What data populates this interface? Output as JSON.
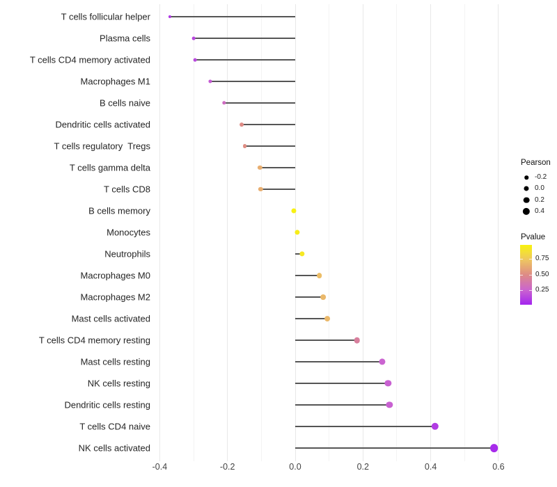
{
  "chart_data": {
    "type": "scatter",
    "subtype": "lollipop",
    "title": "",
    "xlabel": "",
    "ylabel": "",
    "xlim": [
      -0.45,
      0.66
    ],
    "grid": "vertical-only",
    "x_ticks": [
      {
        "value": -0.4,
        "label": "-0.4"
      },
      {
        "value": -0.2,
        "label": "-0.2"
      },
      {
        "value": 0.0,
        "label": "0.0"
      },
      {
        "value": 0.2,
        "label": "0.2"
      },
      {
        "value": 0.4,
        "label": "0.4"
      },
      {
        "value": 0.6,
        "label": "0.6"
      }
    ],
    "x_minor_gridlines": [
      -0.3,
      -0.1,
      0.1,
      0.3,
      0.5
    ],
    "points": [
      {
        "label": "T cells follicular helper",
        "pearson": -0.37,
        "pvalue": 0.09
      },
      {
        "label": "Plasma cells",
        "pearson": -0.3,
        "pvalue": 0.14
      },
      {
        "label": "T cells CD4 memory activated",
        "pearson": -0.295,
        "pvalue": 0.15
      },
      {
        "label": "Macrophages M1",
        "pearson": -0.25,
        "pvalue": 0.22
      },
      {
        "label": "B cells naive",
        "pearson": -0.21,
        "pvalue": 0.3
      },
      {
        "label": "Dendritic cells activated",
        "pearson": -0.158,
        "pvalue": 0.5
      },
      {
        "label": "T cells regulatory  Tregs",
        "pearson": -0.149,
        "pvalue": 0.51
      },
      {
        "label": "T cells gamma delta",
        "pearson": -0.104,
        "pvalue": 0.64
      },
      {
        "label": "T cells CD8",
        "pearson": -0.102,
        "pvalue": 0.64
      },
      {
        "label": "B cells memory",
        "pearson": -0.004,
        "pvalue": 0.97
      },
      {
        "label": "Monocytes",
        "pearson": 0.006,
        "pvalue": 0.95
      },
      {
        "label": "Neutrophils",
        "pearson": 0.021,
        "pvalue": 0.92
      },
      {
        "label": "Macrophages M0",
        "pearson": 0.071,
        "pvalue": 0.7
      },
      {
        "label": "Macrophages M2",
        "pearson": 0.083,
        "pvalue": 0.68
      },
      {
        "label": "Mast cells activated",
        "pearson": 0.095,
        "pvalue": 0.68
      },
      {
        "label": "T cells CD4 memory resting",
        "pearson": 0.182,
        "pvalue": 0.42
      },
      {
        "label": "Mast cells resting",
        "pearson": 0.256,
        "pvalue": 0.25
      },
      {
        "label": "NK cells resting",
        "pearson": 0.274,
        "pvalue": 0.24
      },
      {
        "label": "Dendritic cells resting",
        "pearson": 0.278,
        "pvalue": 0.24
      },
      {
        "label": "T cells CD4 naive",
        "pearson": 0.413,
        "pvalue": 0.1
      },
      {
        "label": "NK cells activated",
        "pearson": 0.587,
        "pvalue": 0.04
      }
    ],
    "legend_size": {
      "title": "Pearson",
      "entries": [
        {
          "value": -0.2,
          "label": "-0.2"
        },
        {
          "value": 0.0,
          "label": "0.0"
        },
        {
          "value": 0.2,
          "label": "0.2"
        },
        {
          "value": 0.4,
          "label": "0.4"
        }
      ]
    },
    "legend_color": {
      "title": "Pvalue",
      "tick_entries": [
        {
          "value": 0.75,
          "label": "0.75"
        },
        {
          "value": 0.5,
          "label": "0.50"
        },
        {
          "value": 0.25,
          "label": "0.25"
        }
      ],
      "bar_range": [
        0.015,
        0.98
      ],
      "scale_stops": [
        "#A020F0",
        "#CA64D0",
        "#DE8B85",
        "#EFC95F",
        "#F9F607"
      ]
    },
    "colors": {
      "stem": "#555555",
      "legend_dot": "#000000",
      "grid_major": "#E8E8E8",
      "grid_minor": "#F3F3F3",
      "axis_text": "#434343",
      "category_text": "#252525"
    }
  }
}
